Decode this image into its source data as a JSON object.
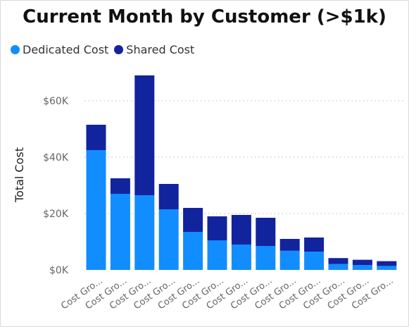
{
  "chart_data": {
    "type": "bar",
    "stacked": true,
    "title": "Current Month by Customer (>$1k)",
    "ylabel": "Total Cost",
    "xlabel": "",
    "ylim": [
      0,
      70000
    ],
    "yticks": [
      0,
      20000,
      40000,
      60000
    ],
    "ytick_labels": [
      "$0K",
      "$20K",
      "$40K",
      "$60K"
    ],
    "grid": true,
    "legend_position": "top-left",
    "categories": [
      "Cost Gro...",
      "Cost Gro...",
      "Cost Gro...",
      "Cost Gro...",
      "Cost Gro...",
      "Cost Gro...",
      "Cost Gro...",
      "Cost Gro...",
      "Cost Gro...",
      "Cost Gro...",
      "Cost Gro...",
      "Cost Gro...",
      "Cost Gro..."
    ],
    "series": [
      {
        "name": "Dedicated Cost",
        "color": "#118DFF",
        "values": [
          42500,
          27000,
          26500,
          21500,
          13500,
          10500,
          9000,
          8500,
          6800,
          6500,
          2100,
          1700,
          1400
        ]
      },
      {
        "name": "Shared Cost",
        "color": "#12239E",
        "values": [
          9000,
          5500,
          42500,
          9000,
          8500,
          8500,
          10500,
          10000,
          4200,
          5000,
          2100,
          1900,
          1700
        ]
      }
    ]
  }
}
